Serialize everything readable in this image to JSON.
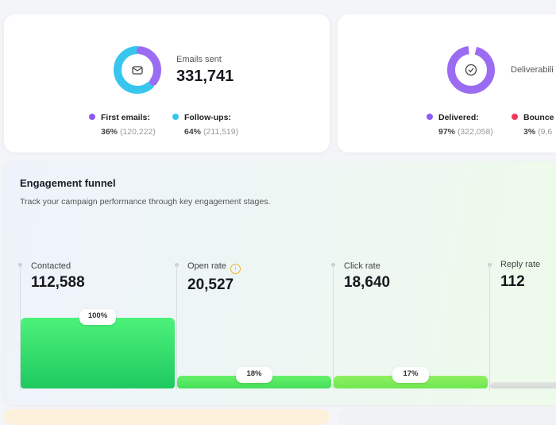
{
  "emails_sent": {
    "label": "Emails sent",
    "value": "331,741",
    "icon": "envelope-icon",
    "legend": [
      {
        "name": "First emails:",
        "pct": "36%",
        "count": "(120,222)",
        "color": "#8b5cf6"
      },
      {
        "name": "Follow-ups:",
        "pct": "64%",
        "count": "(211,519)",
        "color": "#38c6ee"
      }
    ]
  },
  "deliverability": {
    "label": "Deliverabili",
    "icon": "check-circle-icon",
    "legend": [
      {
        "name": "Delivered:",
        "pct": "97%",
        "count": "(322,058)",
        "color": "#8b5cf6"
      },
      {
        "name": "Bounce",
        "pct": "3%",
        "count": "(9,6",
        "color": "#ef3b5d"
      }
    ]
  },
  "funnel": {
    "title": "Engagement funnel",
    "subtitle": "Track your campaign performance through key engagement stages.",
    "stages": [
      {
        "label": "Contacted",
        "value": "112,588",
        "pct": "100%",
        "fill": 100
      },
      {
        "label": "Open rate",
        "value": "20,527",
        "pct": "18%",
        "fill": 18,
        "info": "i"
      },
      {
        "label": "Click rate",
        "value": "18,640",
        "pct": "17%",
        "fill": 17
      },
      {
        "label": "Reply rate",
        "value": "112",
        "fill": 0.1
      }
    ]
  }
}
